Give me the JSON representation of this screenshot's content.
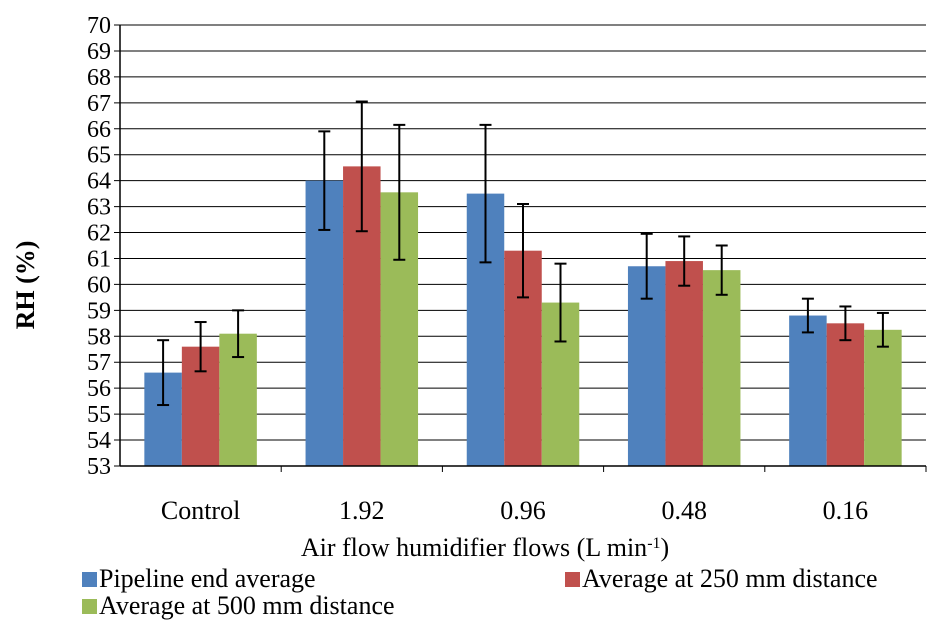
{
  "chart_data": {
    "type": "bar",
    "categories": [
      "Control",
      "1.92",
      "0.96",
      "0.48",
      "0.16"
    ],
    "series": [
      {
        "name": "Pipeline end average",
        "color": "#4f81bd",
        "values": [
          56.6,
          64.0,
          63.5,
          60.7,
          58.8
        ],
        "errors": [
          1.25,
          1.9,
          2.65,
          1.25,
          0.65
        ]
      },
      {
        "name": "Average at 250 mm distance",
        "color": "#c0504d",
        "values": [
          57.6,
          64.55,
          61.3,
          60.9,
          58.5
        ],
        "errors": [
          0.95,
          2.5,
          1.8,
          0.95,
          0.65
        ]
      },
      {
        "name": "Average at 500 mm distance",
        "color": "#9bbb59",
        "values": [
          58.1,
          63.55,
          59.3,
          60.55,
          58.25
        ],
        "errors": [
          0.9,
          2.6,
          1.5,
          0.95,
          0.65
        ]
      }
    ],
    "yticks": [
      "53",
      "54",
      "55",
      "56",
      "57",
      "58",
      "59",
      "60",
      "61",
      "62",
      "63",
      "64",
      "65",
      "66",
      "67",
      "68",
      "69",
      "70"
    ],
    "ylim": [
      53,
      70
    ],
    "xlabel": "Air flow humidifier flows (L min",
    "xlabel_sup": "-1",
    "xlabel_end": ")",
    "ylabel": "RH (%)",
    "grid": "horizontal",
    "legend_position": "bottom"
  }
}
